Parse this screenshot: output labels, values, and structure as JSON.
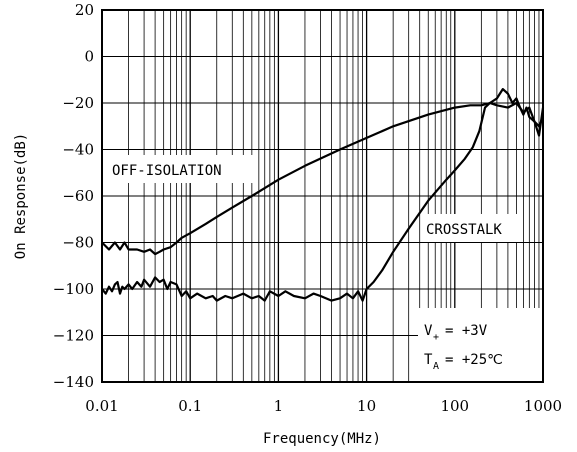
{
  "chart_data": {
    "type": "line",
    "title": "",
    "xlabel": "Frequency(MHz)",
    "ylabel": "On Response(dB)",
    "xscale": "log",
    "xlim": [
      0.01,
      1000
    ],
    "ylim": [
      -140,
      20
    ],
    "grid": true,
    "xticks": [
      {
        "value": 0.01,
        "label": "0.01"
      },
      {
        "value": 0.1,
        "label": "0.1"
      },
      {
        "value": 1,
        "label": "1"
      },
      {
        "value": 10,
        "label": "10"
      },
      {
        "value": 100,
        "label": "100"
      },
      {
        "value": 1000,
        "label": "1000"
      }
    ],
    "yticks": [
      {
        "value": 20,
        "label": "20"
      },
      {
        "value": 0,
        "label": "0"
      },
      {
        "value": -20,
        "label": "−20"
      },
      {
        "value": -40,
        "label": "−40"
      },
      {
        "value": -60,
        "label": "−60"
      },
      {
        "value": -80,
        "label": "−80"
      },
      {
        "value": -100,
        "label": "−100"
      },
      {
        "value": -120,
        "label": "−120"
      },
      {
        "value": -140,
        "label": "−140"
      }
    ],
    "series": [
      {
        "name": "OFF-ISOLATION",
        "x": [
          0.01,
          0.012,
          0.014,
          0.016,
          0.018,
          0.02,
          0.025,
          0.03,
          0.035,
          0.04,
          0.045,
          0.05,
          0.06,
          0.07,
          0.08,
          0.1,
          0.15,
          0.2,
          0.3,
          0.5,
          1,
          2,
          5,
          10,
          20,
          50,
          100,
          150,
          200,
          250,
          300,
          350,
          400,
          450,
          500,
          550,
          600,
          650,
          700,
          800,
          900,
          1000
        ],
        "y": [
          -80,
          -83,
          -80,
          -83,
          -80,
          -83,
          -83,
          -84,
          -83,
          -85,
          -84,
          -83,
          -82,
          -80,
          -78,
          -76,
          -72,
          -69,
          -65,
          -60,
          -53,
          -47,
          -40,
          -35,
          -30,
          -25,
          -22,
          -21,
          -21,
          -20,
          -18,
          -14,
          -16,
          -20,
          -18,
          -22,
          -25,
          -22,
          -26,
          -28,
          -34,
          -22
        ]
      },
      {
        "name": "CROSSTALK",
        "x": [
          0.01,
          0.011,
          0.012,
          0.013,
          0.014,
          0.015,
          0.016,
          0.017,
          0.018,
          0.02,
          0.022,
          0.025,
          0.028,
          0.03,
          0.035,
          0.04,
          0.045,
          0.05,
          0.055,
          0.06,
          0.07,
          0.08,
          0.09,
          0.1,
          0.12,
          0.15,
          0.18,
          0.2,
          0.25,
          0.3,
          0.4,
          0.5,
          0.6,
          0.7,
          0.8,
          1,
          1.2,
          1.5,
          2,
          2.5,
          3,
          4,
          5,
          6,
          7,
          8,
          9,
          10,
          12,
          15,
          20,
          30,
          50,
          80,
          100,
          130,
          160,
          190,
          220,
          250,
          300,
          400,
          500,
          600,
          700,
          800,
          900,
          1000
        ],
        "y": [
          -100,
          -102,
          -99,
          -101,
          -98,
          -97,
          -102,
          -99,
          -100,
          -98,
          -100,
          -97,
          -99,
          -96,
          -99,
          -95,
          -97,
          -96,
          -100,
          -97,
          -98,
          -103,
          -101,
          -104,
          -102,
          -104,
          -103,
          -105,
          -103,
          -104,
          -102,
          -104,
          -103,
          -105,
          -101,
          -103,
          -101,
          -103,
          -104,
          -102,
          -103,
          -105,
          -104,
          -102,
          -104,
          -101,
          -105,
          -100,
          -97,
          -92,
          -84,
          -74,
          -62,
          -53,
          -49,
          -44,
          -39,
          -32,
          -22,
          -20,
          -21,
          -22,
          -20,
          -24,
          -22,
          -28,
          -30,
          -26
        ]
      }
    ],
    "annotations": {
      "off_isolation": "OFF-ISOLATION",
      "crosstalk": "CROSSTALK",
      "vplus_main": "V",
      "vplus_sub": "+",
      "vplus_value": "= +3V",
      "ta_main": "T",
      "ta_sub": "A",
      "ta_value": "= +25℃"
    }
  }
}
